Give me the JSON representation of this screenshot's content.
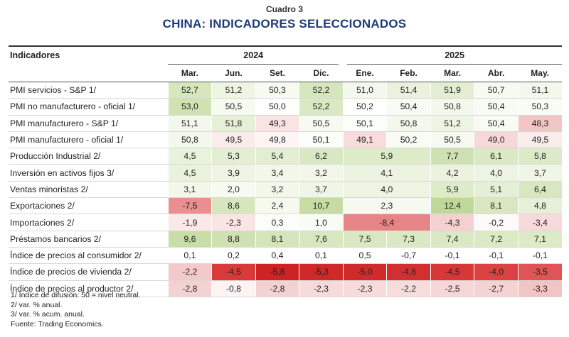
{
  "header": {
    "cuadro": "Cuadro 3",
    "title": "CHINA: INDICADORES SELECCIONADOS"
  },
  "table": {
    "indicator_header": "Indicadores",
    "years": [
      {
        "label": "2024",
        "span": 4
      },
      {
        "label": "2025",
        "span": 5
      }
    ],
    "months": [
      "Mar.",
      "Jun.",
      "Set.",
      "Dic.",
      "Ene.",
      "Feb.",
      "Mar.",
      "Abr.",
      "May."
    ],
    "rows": [
      {
        "label": "PMI servicios - S&P 1/",
        "cells": [
          {
            "v": "52,7",
            "bg": "#d6e6bd"
          },
          {
            "v": "51,2",
            "bg": "#eef5e3"
          },
          {
            "v": "50,3",
            "bg": "#f6faf0"
          },
          {
            "v": "52,2",
            "bg": "#d6e6bd"
          },
          {
            "v": "51,0",
            "bg": "#f3f8ec"
          },
          {
            "v": "51,4",
            "bg": "#eaf2de"
          },
          {
            "v": "51,9",
            "bg": "#e2edd1"
          },
          {
            "v": "50,7",
            "bg": "#f6faf0"
          },
          {
            "v": "51,1",
            "bg": "#f3f8ec"
          }
        ]
      },
      {
        "label": "PMI no manufacturero - oficial 1/",
        "cells": [
          {
            "v": "53,0",
            "bg": "#d0e2b4"
          },
          {
            "v": "50,5",
            "bg": "#f6faf0"
          },
          {
            "v": "50,0",
            "bg": "#ffffff"
          },
          {
            "v": "52,2",
            "bg": "#dae9c3"
          },
          {
            "v": "50,2",
            "bg": "#ffffff"
          },
          {
            "v": "50,4",
            "bg": "#f8fbf3"
          },
          {
            "v": "50,8",
            "bg": "#f3f8ec"
          },
          {
            "v": "50,4",
            "bg": "#f8fbf3"
          },
          {
            "v": "50,3",
            "bg": "#f9fcf5"
          }
        ]
      },
      {
        "label": "PMI manufacturero - S&P 1/",
        "cells": [
          {
            "v": "51,1",
            "bg": "#f3f8ec"
          },
          {
            "v": "51,8",
            "bg": "#e6f0d7"
          },
          {
            "v": "49,3",
            "bg": "#f9e3e3"
          },
          {
            "v": "50,5",
            "bg": "#f6faf0"
          },
          {
            "v": "50,1",
            "bg": "#fbfdf8"
          },
          {
            "v": "50,8",
            "bg": "#f3f8ec"
          },
          {
            "v": "51,2",
            "bg": "#eef5e3"
          },
          {
            "v": "50,4",
            "bg": "#f8fbf3"
          },
          {
            "v": "48,3",
            "bg": "#f3c6c6"
          }
        ]
      },
      {
        "label": "PMI manufacturero - oficial 1/",
        "cells": [
          {
            "v": "50,8",
            "bg": "#f3f8ec"
          },
          {
            "v": "49,5",
            "bg": "#fbecec"
          },
          {
            "v": "49,8",
            "bg": "#fdf4f4"
          },
          {
            "v": "50,1",
            "bg": "#fbfdf8"
          },
          {
            "v": "49,1",
            "bg": "#f8dcdc"
          },
          {
            "v": "50,2",
            "bg": "#f9fcf5"
          },
          {
            "v": "50,5",
            "bg": "#f6faf0"
          },
          {
            "v": "49,0",
            "bg": "#f7d8d8"
          },
          {
            "v": "49,5",
            "bg": "#fbecec"
          }
        ]
      },
      {
        "label": "Producción Industrial 2/",
        "cells": [
          {
            "v": "4,5",
            "bg": "#e9f2dc"
          },
          {
            "v": "5,3",
            "bg": "#e3eed3"
          },
          {
            "v": "5,4",
            "bg": "#e2edd1"
          },
          {
            "v": "6,2",
            "bg": "#d9e8c2"
          },
          {
            "v": "5,9",
            "bg": "#ddebc9",
            "span": 2
          },
          {
            "v": "7,7",
            "bg": "#cfe1b2"
          },
          {
            "v": "6,1",
            "bg": "#dae9c4"
          },
          {
            "v": "5,8",
            "bg": "#ddeac8"
          }
        ]
      },
      {
        "label": "Inversión en activos fijos 3/",
        "cells": [
          {
            "v": "4,5",
            "bg": "#e9f2dc"
          },
          {
            "v": "3,9",
            "bg": "#eef5e4"
          },
          {
            "v": "3,4",
            "bg": "#f1f7e9"
          },
          {
            "v": "3,2",
            "bg": "#f2f7ea"
          },
          {
            "v": "4,1",
            "bg": "#ecf3e0",
            "span": 2
          },
          {
            "v": "4,2",
            "bg": "#ebf3df"
          },
          {
            "v": "4,0",
            "bg": "#edf4e2"
          },
          {
            "v": "3,7",
            "bg": "#eff6e6"
          }
        ]
      },
      {
        "label": "Ventas minoristas 2/",
        "cells": [
          {
            "v": "3,1",
            "bg": "#f2f7ea"
          },
          {
            "v": "2,0",
            "bg": "#f6faf0"
          },
          {
            "v": "3,2",
            "bg": "#f2f7ea"
          },
          {
            "v": "3,7",
            "bg": "#eff6e6"
          },
          {
            "v": "4,0",
            "bg": "#edf4e2",
            "span": 2
          },
          {
            "v": "5,9",
            "bg": "#ddebc9"
          },
          {
            "v": "5,1",
            "bg": "#e4efd5"
          },
          {
            "v": "6,4",
            "bg": "#d8e7c0"
          }
        ]
      },
      {
        "label": "Exportaciones  2/",
        "cells": [
          {
            "v": "-7,5",
            "bg": "#e98f8f"
          },
          {
            "v": "8,6",
            "bg": "#d6e6bd"
          },
          {
            "v": "2,4",
            "bg": "#f5f9ee"
          },
          {
            "v": "10,7",
            "bg": "#c7dca5"
          },
          {
            "v": "2,3",
            "bg": "#f5f9ef",
            "span": 2
          },
          {
            "v": "12,4",
            "bg": "#bfd799"
          },
          {
            "v": "8,1",
            "bg": "#d8e7c0"
          },
          {
            "v": "4,8",
            "bg": "#e6f0d8"
          }
        ]
      },
      {
        "label": "Importaciones 2/",
        "cells": [
          {
            "v": "-1,9",
            "bg": "#fbe9e9"
          },
          {
            "v": "-2,3",
            "bg": "#fae4e4"
          },
          {
            "v": "0,3",
            "bg": "#fcfdfa"
          },
          {
            "v": "1,0",
            "bg": "#f9fcf5"
          },
          {
            "v": "-8,4",
            "bg": "#e68585",
            "span": 2
          },
          {
            "v": "-4,3",
            "bg": "#f5d0d0"
          },
          {
            "v": "-0,2",
            "bg": "#fefafa"
          },
          {
            "v": "-3,4",
            "bg": "#f7dada"
          }
        ]
      },
      {
        "label": "Préstamos bancarios 2/",
        "cells": [
          {
            "v": "9,6",
            "bg": "#c9dda8"
          },
          {
            "v": "8,8",
            "bg": "#cfe1b2"
          },
          {
            "v": "8,1",
            "bg": "#d4e5bb"
          },
          {
            "v": "7,6",
            "bg": "#d8e7c0"
          },
          {
            "v": "7,5",
            "bg": "#d9e8c2"
          },
          {
            "v": "7,3",
            "bg": "#dae9c4"
          },
          {
            "v": "7,4",
            "bg": "#dae8c3"
          },
          {
            "v": "7,2",
            "bg": "#dbe9c5"
          },
          {
            "v": "7,1",
            "bg": "#dceac6"
          }
        ]
      },
      {
        "label": "Índice de precios al consumidor 2/",
        "cells": [
          {
            "v": "0,1",
            "bg": "#ffffff"
          },
          {
            "v": "0,2",
            "bg": "#ffffff"
          },
          {
            "v": "0,4",
            "bg": "#ffffff"
          },
          {
            "v": "0,1",
            "bg": "#ffffff"
          },
          {
            "v": "0,5",
            "bg": "#ffffff"
          },
          {
            "v": "-0,7",
            "bg": "#ffffff"
          },
          {
            "v": "-0,1",
            "bg": "#ffffff"
          },
          {
            "v": "-0,1",
            "bg": "#ffffff"
          },
          {
            "v": "-0,1",
            "bg": "#ffffff"
          }
        ]
      },
      {
        "label": "Índice de precios de vivienda 2/",
        "cells": [
          {
            "v": "-2,2",
            "bg": "#f4c9c9"
          },
          {
            "v": "-4,5",
            "bg": "#d83a3a"
          },
          {
            "v": "-5,8",
            "bg": "#cd2323"
          },
          {
            "v": "-5,3",
            "bg": "#cf2828"
          },
          {
            "v": "-5,0",
            "bg": "#d02b2b"
          },
          {
            "v": "-4,8",
            "bg": "#d23030"
          },
          {
            "v": "-4,5",
            "bg": "#d63838"
          },
          {
            "v": "-4,0",
            "bg": "#da4242"
          },
          {
            "v": "-3,5",
            "bg": "#df5454"
          }
        ]
      },
      {
        "label": "Índice de precios al productor 2/",
        "cells": [
          {
            "v": "-2,8",
            "bg": "#f5d2d2"
          },
          {
            "v": "-0,8",
            "bg": "#fdf3f3"
          },
          {
            "v": "-2,8",
            "bg": "#f5d2d2"
          },
          {
            "v": "-2,3",
            "bg": "#f7dbdb"
          },
          {
            "v": "-2,3",
            "bg": "#f7dbdb"
          },
          {
            "v": "-2,2",
            "bg": "#f7dcdc"
          },
          {
            "v": "-2,5",
            "bg": "#f6d6d6"
          },
          {
            "v": "-2,7",
            "bg": "#f5d3d3"
          },
          {
            "v": "-3,3",
            "bg": "#f2c5c5"
          }
        ]
      }
    ]
  },
  "notes": [
    "1/ Índice de difusión: 50 = nivel neutral.",
    "2/ var. % anual.",
    "3/ var. % acum. anual.",
    "Fuente: Trading Economics."
  ]
}
